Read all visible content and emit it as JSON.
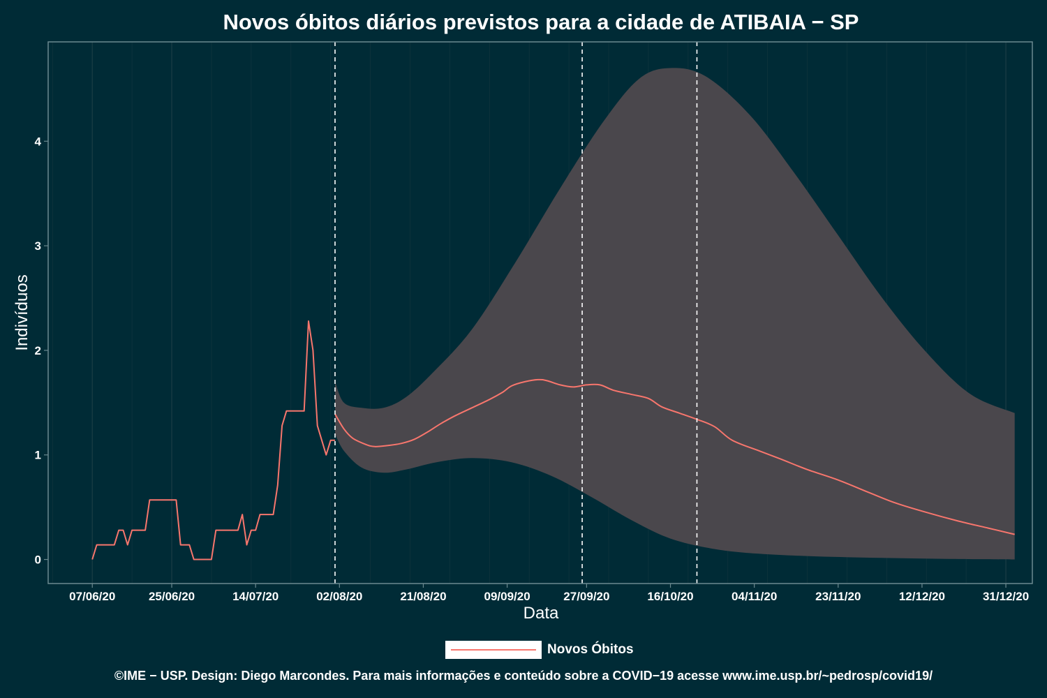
{
  "chart_data": {
    "type": "line",
    "title": "Novos óbitos diários previstos para a cidade de ATIBAIA − SP",
    "xlabel": "Data",
    "ylabel": "Indivíduos",
    "x_ticks": [
      "07/06/20",
      "25/06/20",
      "14/07/20",
      "02/08/20",
      "21/08/20",
      "09/09/20",
      "27/09/20",
      "16/10/20",
      "04/11/20",
      "23/11/20",
      "12/12/20",
      "31/12/20"
    ],
    "y_ticks": [
      0,
      1,
      2,
      3,
      4
    ],
    "ylim": [
      -0.23,
      4.95
    ],
    "xlim": [
      "2020-05-28",
      "2021-01-06"
    ],
    "vlines": [
      "2020-08-01",
      "2020-09-26",
      "2020-10-22"
    ],
    "grid": true,
    "legend_position": "bottom",
    "series": [
      {
        "name": "Novos Óbitos",
        "color": "#f8766d",
        "observed": [
          [
            "2020-06-07",
            0.0
          ],
          [
            "2020-06-08",
            0.14
          ],
          [
            "2020-06-12",
            0.14
          ],
          [
            "2020-06-13",
            0.28
          ],
          [
            "2020-06-14",
            0.28
          ],
          [
            "2020-06-15",
            0.14
          ],
          [
            "2020-06-16",
            0.28
          ],
          [
            "2020-06-19",
            0.28
          ],
          [
            "2020-06-20",
            0.57
          ],
          [
            "2020-06-26",
            0.57
          ],
          [
            "2020-06-27",
            0.14
          ],
          [
            "2020-06-29",
            0.14
          ],
          [
            "2020-06-30",
            0.0
          ],
          [
            "2020-07-04",
            0.0
          ],
          [
            "2020-07-05",
            0.28
          ],
          [
            "2020-07-10",
            0.28
          ],
          [
            "2020-07-11",
            0.43
          ],
          [
            "2020-07-12",
            0.14
          ],
          [
            "2020-07-13",
            0.28
          ],
          [
            "2020-07-14",
            0.28
          ],
          [
            "2020-07-15",
            0.43
          ],
          [
            "2020-07-18",
            0.43
          ],
          [
            "2020-07-19",
            0.71
          ],
          [
            "2020-07-20",
            1.28
          ],
          [
            "2020-07-21",
            1.42
          ],
          [
            "2020-07-25",
            1.42
          ],
          [
            "2020-07-26",
            2.28
          ],
          [
            "2020-07-27",
            2.0
          ],
          [
            "2020-07-28",
            1.28
          ],
          [
            "2020-07-29",
            1.14
          ],
          [
            "2020-07-30",
            1.0
          ],
          [
            "2020-07-31",
            1.14
          ],
          [
            "2020-08-01",
            1.14
          ]
        ],
        "forecast": [
          [
            "2020-08-01",
            1.39
          ],
          [
            "2020-08-03",
            1.25
          ],
          [
            "2020-08-05",
            1.16
          ],
          [
            "2020-08-08",
            1.1
          ],
          [
            "2020-08-10",
            1.08
          ],
          [
            "2020-08-13",
            1.09
          ],
          [
            "2020-08-16",
            1.11
          ],
          [
            "2020-08-19",
            1.15
          ],
          [
            "2020-08-22",
            1.22
          ],
          [
            "2020-08-25",
            1.3
          ],
          [
            "2020-08-28",
            1.37
          ],
          [
            "2020-09-01",
            1.45
          ],
          [
            "2020-09-05",
            1.53
          ],
          [
            "2020-09-08",
            1.6
          ],
          [
            "2020-09-10",
            1.66
          ],
          [
            "2020-09-13",
            1.7
          ],
          [
            "2020-09-16",
            1.72
          ],
          [
            "2020-09-18",
            1.71
          ],
          [
            "2020-09-21",
            1.67
          ],
          [
            "2020-09-24",
            1.65
          ],
          [
            "2020-09-27",
            1.67
          ],
          [
            "2020-09-30",
            1.67
          ],
          [
            "2020-10-03",
            1.62
          ],
          [
            "2020-10-07",
            1.58
          ],
          [
            "2020-10-11",
            1.54
          ],
          [
            "2020-10-14",
            1.46
          ],
          [
            "2020-10-18",
            1.4
          ],
          [
            "2020-10-22",
            1.34
          ],
          [
            "2020-10-26",
            1.27
          ],
          [
            "2020-10-30",
            1.14
          ],
          [
            "2020-11-05",
            1.04
          ],
          [
            "2020-11-10",
            0.96
          ],
          [
            "2020-11-16",
            0.86
          ],
          [
            "2020-11-23",
            0.76
          ],
          [
            "2020-11-30",
            0.64
          ],
          [
            "2020-12-06",
            0.54
          ],
          [
            "2020-12-13",
            0.45
          ],
          [
            "2020-12-20",
            0.37
          ],
          [
            "2020-12-27",
            0.3
          ],
          [
            "2021-01-02",
            0.24
          ]
        ]
      }
    ],
    "band": {
      "color": "#4a474c",
      "upper": [
        [
          "2020-08-01",
          1.7
        ],
        [
          "2020-08-03",
          1.5
        ],
        [
          "2020-08-07",
          1.45
        ],
        [
          "2020-08-12",
          1.45
        ],
        [
          "2020-08-17",
          1.55
        ],
        [
          "2020-08-23",
          1.78
        ],
        [
          "2020-09-01",
          2.2
        ],
        [
          "2020-09-11",
          2.85
        ],
        [
          "2020-09-21",
          3.55
        ],
        [
          "2020-10-01",
          4.2
        ],
        [
          "2020-10-09",
          4.6
        ],
        [
          "2020-10-16",
          4.7
        ],
        [
          "2020-10-24",
          4.62
        ],
        [
          "2020-11-03",
          4.25
        ],
        [
          "2020-11-13",
          3.7
        ],
        [
          "2020-11-23",
          3.1
        ],
        [
          "2020-12-03",
          2.5
        ],
        [
          "2020-12-13",
          1.98
        ],
        [
          "2020-12-23",
          1.58
        ],
        [
          "2021-01-02",
          1.4
        ]
      ],
      "lower": [
        [
          "2020-08-01",
          1.2
        ],
        [
          "2020-08-03",
          1.04
        ],
        [
          "2020-08-07",
          0.88
        ],
        [
          "2020-08-12",
          0.83
        ],
        [
          "2020-08-17",
          0.86
        ],
        [
          "2020-08-24",
          0.93
        ],
        [
          "2020-09-01",
          0.97
        ],
        [
          "2020-09-10",
          0.93
        ],
        [
          "2020-09-19",
          0.8
        ],
        [
          "2020-09-28",
          0.6
        ],
        [
          "2020-10-07",
          0.38
        ],
        [
          "2020-10-16",
          0.2
        ],
        [
          "2020-10-26",
          0.1
        ],
        [
          "2020-11-05",
          0.055
        ],
        [
          "2020-11-18",
          0.03
        ],
        [
          "2020-12-03",
          0.015
        ],
        [
          "2020-12-18",
          0.005
        ],
        [
          "2021-01-02",
          0.0
        ]
      ]
    }
  },
  "legend": {
    "label": "Novos Óbitos"
  },
  "caption": "©IME − USP. Design: Diego Marcondes. Para mais informações e conteúdo sobre a COVID−19 acesse www.ime.usp.br/~pedrosp/covid19/"
}
